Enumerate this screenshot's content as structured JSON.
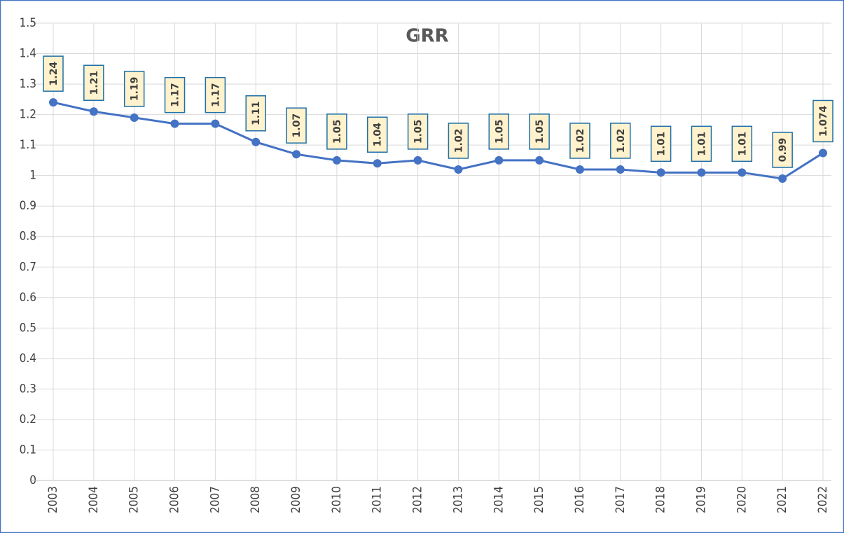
{
  "chart_data": {
    "type": "line",
    "title": "GRR",
    "categories": [
      "2003",
      "2004",
      "2005",
      "2006",
      "2007",
      "2008",
      "2009",
      "2010",
      "2011",
      "2012",
      "2013",
      "2014",
      "2015",
      "2016",
      "2017",
      "2018",
      "2019",
      "2020",
      "2021",
      "2022"
    ],
    "series": [
      {
        "name": "GRR",
        "color": "#4472c4",
        "values": [
          1.24,
          1.21,
          1.19,
          1.17,
          1.17,
          1.11,
          1.07,
          1.05,
          1.04,
          1.05,
          1.02,
          1.05,
          1.05,
          1.02,
          1.02,
          1.01,
          1.01,
          1.01,
          0.99,
          1.074
        ]
      }
    ],
    "ylim": [
      0,
      1.5
    ],
    "yticks": [
      0,
      0.1,
      0.2,
      0.3,
      0.4,
      0.5,
      0.6,
      0.7,
      0.8,
      0.9,
      1,
      1.1,
      1.2,
      1.3,
      1.4,
      1.5
    ],
    "grid": true
  }
}
